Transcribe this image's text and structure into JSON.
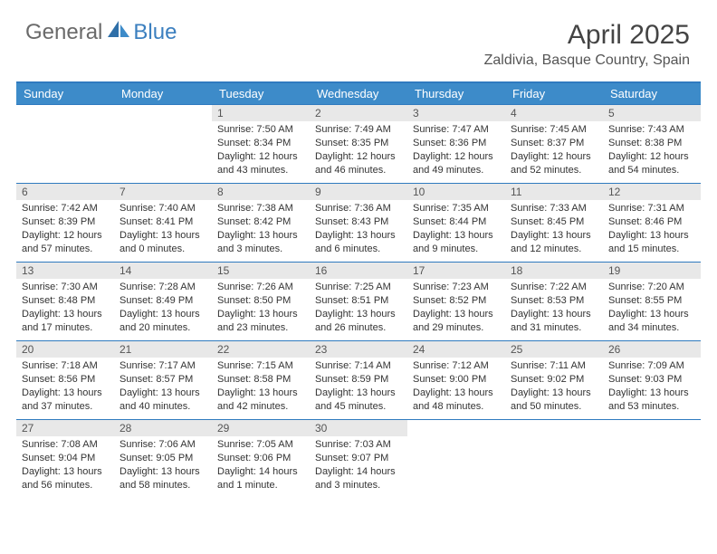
{
  "logo": {
    "left": "General",
    "right": "Blue"
  },
  "title": "April 2025",
  "subtitle": "Zaldivia, Basque Country, Spain",
  "colors": {
    "header_bg": "#3d8bc9",
    "border": "#2f7abf",
    "daynum_bg": "#e8e8e8",
    "text": "#333333",
    "logo_grey": "#6a6a6a",
    "logo_blue": "#3b7fbf"
  },
  "weekdays": [
    "Sunday",
    "Monday",
    "Tuesday",
    "Wednesday",
    "Thursday",
    "Friday",
    "Saturday"
  ],
  "weeks": [
    [
      {
        "day": "",
        "sunrise": "",
        "sunset": "",
        "daylight": ""
      },
      {
        "day": "",
        "sunrise": "",
        "sunset": "",
        "daylight": ""
      },
      {
        "day": "1",
        "sunrise": "Sunrise: 7:50 AM",
        "sunset": "Sunset: 8:34 PM",
        "daylight": "Daylight: 12 hours and 43 minutes."
      },
      {
        "day": "2",
        "sunrise": "Sunrise: 7:49 AM",
        "sunset": "Sunset: 8:35 PM",
        "daylight": "Daylight: 12 hours and 46 minutes."
      },
      {
        "day": "3",
        "sunrise": "Sunrise: 7:47 AM",
        "sunset": "Sunset: 8:36 PM",
        "daylight": "Daylight: 12 hours and 49 minutes."
      },
      {
        "day": "4",
        "sunrise": "Sunrise: 7:45 AM",
        "sunset": "Sunset: 8:37 PM",
        "daylight": "Daylight: 12 hours and 52 minutes."
      },
      {
        "day": "5",
        "sunrise": "Sunrise: 7:43 AM",
        "sunset": "Sunset: 8:38 PM",
        "daylight": "Daylight: 12 hours and 54 minutes."
      }
    ],
    [
      {
        "day": "6",
        "sunrise": "Sunrise: 7:42 AM",
        "sunset": "Sunset: 8:39 PM",
        "daylight": "Daylight: 12 hours and 57 minutes."
      },
      {
        "day": "7",
        "sunrise": "Sunrise: 7:40 AM",
        "sunset": "Sunset: 8:41 PM",
        "daylight": "Daylight: 13 hours and 0 minutes."
      },
      {
        "day": "8",
        "sunrise": "Sunrise: 7:38 AM",
        "sunset": "Sunset: 8:42 PM",
        "daylight": "Daylight: 13 hours and 3 minutes."
      },
      {
        "day": "9",
        "sunrise": "Sunrise: 7:36 AM",
        "sunset": "Sunset: 8:43 PM",
        "daylight": "Daylight: 13 hours and 6 minutes."
      },
      {
        "day": "10",
        "sunrise": "Sunrise: 7:35 AM",
        "sunset": "Sunset: 8:44 PM",
        "daylight": "Daylight: 13 hours and 9 minutes."
      },
      {
        "day": "11",
        "sunrise": "Sunrise: 7:33 AM",
        "sunset": "Sunset: 8:45 PM",
        "daylight": "Daylight: 13 hours and 12 minutes."
      },
      {
        "day": "12",
        "sunrise": "Sunrise: 7:31 AM",
        "sunset": "Sunset: 8:46 PM",
        "daylight": "Daylight: 13 hours and 15 minutes."
      }
    ],
    [
      {
        "day": "13",
        "sunrise": "Sunrise: 7:30 AM",
        "sunset": "Sunset: 8:48 PM",
        "daylight": "Daylight: 13 hours and 17 minutes."
      },
      {
        "day": "14",
        "sunrise": "Sunrise: 7:28 AM",
        "sunset": "Sunset: 8:49 PM",
        "daylight": "Daylight: 13 hours and 20 minutes."
      },
      {
        "day": "15",
        "sunrise": "Sunrise: 7:26 AM",
        "sunset": "Sunset: 8:50 PM",
        "daylight": "Daylight: 13 hours and 23 minutes."
      },
      {
        "day": "16",
        "sunrise": "Sunrise: 7:25 AM",
        "sunset": "Sunset: 8:51 PM",
        "daylight": "Daylight: 13 hours and 26 minutes."
      },
      {
        "day": "17",
        "sunrise": "Sunrise: 7:23 AM",
        "sunset": "Sunset: 8:52 PM",
        "daylight": "Daylight: 13 hours and 29 minutes."
      },
      {
        "day": "18",
        "sunrise": "Sunrise: 7:22 AM",
        "sunset": "Sunset: 8:53 PM",
        "daylight": "Daylight: 13 hours and 31 minutes."
      },
      {
        "day": "19",
        "sunrise": "Sunrise: 7:20 AM",
        "sunset": "Sunset: 8:55 PM",
        "daylight": "Daylight: 13 hours and 34 minutes."
      }
    ],
    [
      {
        "day": "20",
        "sunrise": "Sunrise: 7:18 AM",
        "sunset": "Sunset: 8:56 PM",
        "daylight": "Daylight: 13 hours and 37 minutes."
      },
      {
        "day": "21",
        "sunrise": "Sunrise: 7:17 AM",
        "sunset": "Sunset: 8:57 PM",
        "daylight": "Daylight: 13 hours and 40 minutes."
      },
      {
        "day": "22",
        "sunrise": "Sunrise: 7:15 AM",
        "sunset": "Sunset: 8:58 PM",
        "daylight": "Daylight: 13 hours and 42 minutes."
      },
      {
        "day": "23",
        "sunrise": "Sunrise: 7:14 AM",
        "sunset": "Sunset: 8:59 PM",
        "daylight": "Daylight: 13 hours and 45 minutes."
      },
      {
        "day": "24",
        "sunrise": "Sunrise: 7:12 AM",
        "sunset": "Sunset: 9:00 PM",
        "daylight": "Daylight: 13 hours and 48 minutes."
      },
      {
        "day": "25",
        "sunrise": "Sunrise: 7:11 AM",
        "sunset": "Sunset: 9:02 PM",
        "daylight": "Daylight: 13 hours and 50 minutes."
      },
      {
        "day": "26",
        "sunrise": "Sunrise: 7:09 AM",
        "sunset": "Sunset: 9:03 PM",
        "daylight": "Daylight: 13 hours and 53 minutes."
      }
    ],
    [
      {
        "day": "27",
        "sunrise": "Sunrise: 7:08 AM",
        "sunset": "Sunset: 9:04 PM",
        "daylight": "Daylight: 13 hours and 56 minutes."
      },
      {
        "day": "28",
        "sunrise": "Sunrise: 7:06 AM",
        "sunset": "Sunset: 9:05 PM",
        "daylight": "Daylight: 13 hours and 58 minutes."
      },
      {
        "day": "29",
        "sunrise": "Sunrise: 7:05 AM",
        "sunset": "Sunset: 9:06 PM",
        "daylight": "Daylight: 14 hours and 1 minute."
      },
      {
        "day": "30",
        "sunrise": "Sunrise: 7:03 AM",
        "sunset": "Sunset: 9:07 PM",
        "daylight": "Daylight: 14 hours and 3 minutes."
      },
      {
        "day": "",
        "sunrise": "",
        "sunset": "",
        "daylight": ""
      },
      {
        "day": "",
        "sunrise": "",
        "sunset": "",
        "daylight": ""
      },
      {
        "day": "",
        "sunrise": "",
        "sunset": "",
        "daylight": ""
      }
    ]
  ]
}
